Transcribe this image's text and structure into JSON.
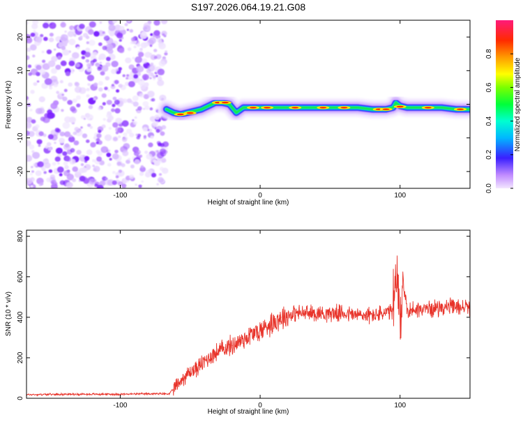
{
  "title": "S197.2026.064.19.21.G08",
  "chart_data": [
    {
      "type": "heatmap",
      "name": "spectrogram",
      "xlabel": "Height of straight line (km)",
      "ylabel": "Frequency (Hz)",
      "xlim": [
        -167,
        150
      ],
      "ylim": [
        -25,
        25
      ],
      "xticks": [
        -100,
        0,
        100
      ],
      "xtick_labels": [
        "-100",
        "0",
        "100"
      ],
      "yticks": [
        -20,
        -10,
        0,
        10,
        20
      ],
      "ytick_labels": [
        "-20",
        "-10",
        "0",
        "10",
        "20"
      ],
      "noise_region_x": [
        -167,
        -67
      ],
      "ridge": {
        "x": [
          -67,
          -62,
          -57,
          -52,
          -47,
          -42,
          -37,
          -32,
          -27,
          -22,
          -17,
          -12,
          -7,
          -2,
          10,
          30,
          50,
          70,
          80,
          90,
          95,
          97,
          100,
          105,
          110,
          120,
          130,
          140,
          150
        ],
        "freq": [
          -1.5,
          -2.5,
          -3.0,
          -2.5,
          -2.0,
          -1.5,
          -0.5,
          0.5,
          0.5,
          0.0,
          -2.5,
          -1.0,
          -1.0,
          -1.0,
          -1.0,
          -1.0,
          -1.0,
          -1.0,
          -1.5,
          -1.5,
          -1.0,
          0.5,
          -0.5,
          -1.0,
          -1.0,
          -1.0,
          -1.0,
          -1.5,
          -1.5
        ]
      },
      "colorbar": {
        "label": "Normalized spectral amplitude",
        "ticks": [
          0.0,
          0.2,
          0.4,
          0.6,
          0.8
        ],
        "tick_labels": [
          "0.0",
          "0.2",
          "0.4",
          "0.6",
          "0.8"
        ],
        "range": [
          0,
          1
        ]
      }
    },
    {
      "type": "line",
      "name": "snr",
      "xlabel": "Height of straight line (km)",
      "ylabel": "SNR (10 * v/v)",
      "xlim": [
        -167,
        150
      ],
      "ylim": [
        0,
        830
      ],
      "xticks": [
        -100,
        0,
        100
      ],
      "xtick_labels": [
        "-100",
        "0",
        "100"
      ],
      "yticks": [
        0,
        200,
        400,
        600,
        800
      ],
      "ytick_labels": [
        "0",
        "200",
        "400",
        "600",
        "800"
      ],
      "color": "#e8332a",
      "series": [
        {
          "name": "SNR",
          "x": [
            -167,
            -140,
            -100,
            -80,
            -65,
            -60,
            -55,
            -50,
            -45,
            -40,
            -35,
            -30,
            -25,
            -20,
            -15,
            -10,
            -5,
            0,
            5,
            10,
            15,
            20,
            25,
            30,
            40,
            50,
            60,
            70,
            80,
            90,
            95,
            98,
            100,
            102,
            105,
            110,
            120,
            130,
            140,
            150
          ],
          "values": [
            18,
            20,
            20,
            22,
            22,
            60,
            100,
            130,
            150,
            180,
            210,
            230,
            250,
            260,
            280,
            300,
            320,
            330,
            360,
            380,
            400,
            410,
            420,
            420,
            420,
            420,
            420,
            410,
            410,
            420,
            430,
            600,
            300,
            600,
            430,
            440,
            440,
            450,
            450,
            450
          ]
        }
      ]
    }
  ]
}
